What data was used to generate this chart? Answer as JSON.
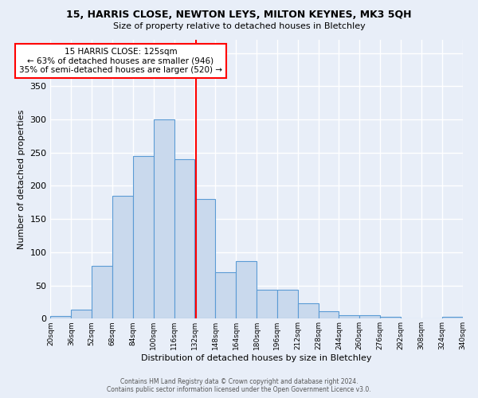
{
  "title1": "15, HARRIS CLOSE, NEWTON LEYS, MILTON KEYNES, MK3 5QH",
  "title2": "Size of property relative to detached houses in Bletchley",
  "xlabel": "Distribution of detached houses by size in Bletchley",
  "ylabel": "Number of detached properties",
  "bin_labels": [
    "20sqm",
    "36sqm",
    "52sqm",
    "68sqm",
    "84sqm",
    "100sqm",
    "116sqm",
    "132sqm",
    "148sqm",
    "164sqm",
    "180sqm",
    "196sqm",
    "212sqm",
    "228sqm",
    "244sqm",
    "260sqm",
    "276sqm",
    "292sqm",
    "308sqm",
    "324sqm",
    "340sqm"
  ],
  "bar_heights": [
    4,
    14,
    80,
    185,
    245,
    300,
    240,
    180,
    70,
    87,
    44,
    44,
    23,
    11,
    5,
    5,
    3,
    0,
    0,
    3
  ],
  "bar_color": "#c9d9ed",
  "bar_edge_color": "#5b9bd5",
  "vline_x": 6.5625,
  "annotation_text": "15 HARRIS CLOSE: 125sqm\n← 63% of detached houses are smaller (946)\n35% of semi-detached houses are larger (520) →",
  "annotation_box_color": "white",
  "annotation_border_color": "red",
  "vline_color": "red",
  "footer1": "Contains HM Land Registry data © Crown copyright and database right 2024.",
  "footer2": "Contains public sector information licensed under the Open Government Licence v3.0.",
  "ylim": [
    0,
    420
  ],
  "bg_color": "#e8eef8",
  "grid_color": "white"
}
